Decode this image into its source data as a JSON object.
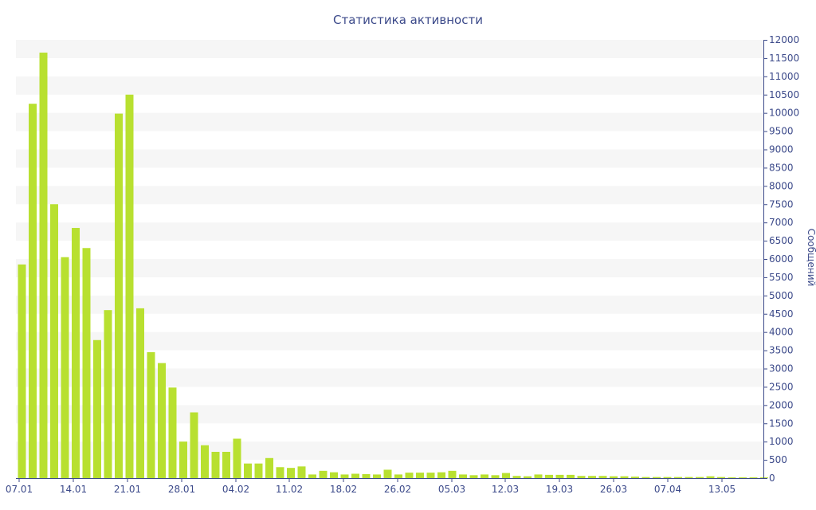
{
  "chart_data": {
    "type": "bar",
    "title": "Статистика активности",
    "xlabel": "",
    "ylabel": "Сообщений",
    "ylim": [
      0,
      12000
    ],
    "y_ticks": [
      0,
      500,
      1000,
      1500,
      2000,
      2500,
      3000,
      3500,
      4000,
      4500,
      5000,
      5500,
      6000,
      6500,
      7000,
      7500,
      8000,
      8500,
      9000,
      9500,
      10000,
      10500,
      11000,
      11500,
      12000
    ],
    "y_axis_position": "right",
    "grid": "horizontal alternating bands",
    "x_tick_labels": [
      "07.01",
      "14.01",
      "21.01",
      "28.01",
      "04.02",
      "11.02",
      "18.02",
      "26.02",
      "05.03",
      "12.03",
      "19.03",
      "26.03",
      "07.04",
      "13.05"
    ],
    "bar_color": "#b8e030",
    "text_color": "#3c4a8a",
    "values": [
      5850,
      10250,
      11650,
      7500,
      6050,
      6850,
      6300,
      3780,
      4600,
      9980,
      10500,
      4650,
      3450,
      3150,
      2480,
      1000,
      1800,
      900,
      720,
      720,
      1080,
      400,
      400,
      550,
      300,
      280,
      320,
      100,
      200,
      160,
      100,
      120,
      110,
      100,
      230,
      100,
      150,
      150,
      150,
      160,
      200,
      100,
      80,
      100,
      80,
      140,
      60,
      50,
      100,
      90,
      90,
      90,
      60,
      60,
      60,
      50,
      50,
      40,
      30,
      30,
      30,
      30,
      30,
      30,
      50,
      30,
      20,
      20,
      20,
      20
    ]
  }
}
